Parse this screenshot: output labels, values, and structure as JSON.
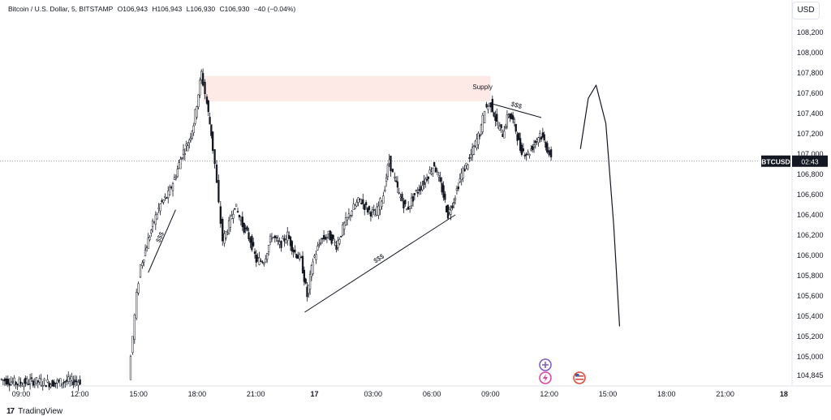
{
  "header": {
    "symbol": "Bitcoin / U.S. Dollar, 5, BITSTAMP",
    "open": "O106,943",
    "high": "H106,943",
    "low": "L106,930",
    "close": "C106,930",
    "change": "−40 (−0.04%)"
  },
  "currency_button": "USD",
  "footer": {
    "logo": "17",
    "brand": "TradingView"
  },
  "chart_data": {
    "type": "candlestick",
    "symbol_badge": "BTCUSD",
    "countdown": "02:43",
    "current_price": 106930,
    "y_ticks": [
      108200,
      108000,
      107800,
      107600,
      107400,
      107200,
      107000,
      106800,
      106600,
      106400,
      106200,
      106000,
      105800,
      105600,
      105400,
      105200,
      105000
    ],
    "y_tick_labels": [
      "108,200",
      "108,000",
      "107,800",
      "107,600",
      "107,400",
      "107,200",
      "107,000",
      "106,800",
      "106,600",
      "106,400",
      "106,200",
      "106,000",
      "105,800",
      "105,600",
      "105,400",
      "105,200",
      "105,000",
      "104,845"
    ],
    "bottom_price": 104845,
    "x_ticks": [
      {
        "t": 9,
        "label": "09:00"
      },
      {
        "t": 12,
        "label": "12:00"
      },
      {
        "t": 15,
        "label": "15:00"
      },
      {
        "t": 18,
        "label": "18:00"
      },
      {
        "t": 21,
        "label": "21:00"
      },
      {
        "t": 24,
        "label": "17",
        "bold": true
      },
      {
        "t": 27,
        "label": "03:00"
      },
      {
        "t": 30,
        "label": "06:00"
      },
      {
        "t": 33,
        "label": "09:00"
      },
      {
        "t": 36,
        "label": "12:00"
      },
      {
        "t": 39,
        "label": "15:00"
      },
      {
        "t": 42,
        "label": "18:00"
      },
      {
        "t": 45,
        "label": "21:00"
      },
      {
        "t": 48,
        "label": "18",
        "bold": true
      }
    ],
    "path_points": [
      [
        8.0,
        104780
      ],
      [
        8.9,
        104740
      ],
      [
        9.7,
        104760
      ],
      [
        10.6,
        104740
      ],
      [
        11.5,
        104760
      ],
      [
        12.1,
        104760
      ],
      [
        14.6,
        104800
      ],
      [
        14.8,
        105200
      ],
      [
        15.0,
        105600
      ],
      [
        15.2,
        105900
      ],
      [
        15.5,
        106100
      ],
      [
        15.8,
        106300
      ],
      [
        16.2,
        106500
      ],
      [
        16.6,
        106600
      ],
      [
        17.0,
        106800
      ],
      [
        17.3,
        107000
      ],
      [
        17.6,
        107100
      ],
      [
        17.9,
        107300
      ],
      [
        18.3,
        107800
      ],
      [
        18.5,
        107600
      ],
      [
        18.8,
        107200
      ],
      [
        19.0,
        106900
      ],
      [
        19.2,
        106500
      ],
      [
        19.4,
        106150
      ],
      [
        19.7,
        106300
      ],
      [
        20.0,
        106500
      ],
      [
        20.4,
        106300
      ],
      [
        20.8,
        106150
      ],
      [
        21.1,
        105950
      ],
      [
        21.5,
        105950
      ],
      [
        21.9,
        106200
      ],
      [
        22.3,
        106100
      ],
      [
        22.7,
        106200
      ],
      [
        23.0,
        106050
      ],
      [
        23.4,
        105950
      ],
      [
        23.7,
        105600
      ],
      [
        24.0,
        105950
      ],
      [
        24.4,
        106150
      ],
      [
        24.8,
        106200
      ],
      [
        25.2,
        106100
      ],
      [
        25.6,
        106300
      ],
      [
        26.0,
        106450
      ],
      [
        26.4,
        106550
      ],
      [
        26.8,
        106450
      ],
      [
        27.2,
        106400
      ],
      [
        27.6,
        106600
      ],
      [
        27.9,
        106950
      ],
      [
        28.1,
        106800
      ],
      [
        28.4,
        106600
      ],
      [
        28.8,
        106450
      ],
      [
        29.2,
        106600
      ],
      [
        29.6,
        106700
      ],
      [
        29.9,
        106800
      ],
      [
        30.2,
        106900
      ],
      [
        30.6,
        106650
      ],
      [
        30.9,
        106400
      ],
      [
        31.2,
        106550
      ],
      [
        31.6,
        106800
      ],
      [
        32.0,
        106950
      ],
      [
        32.3,
        107100
      ],
      [
        32.6,
        107250
      ],
      [
        32.8,
        107450
      ],
      [
        33.1,
        107500
      ],
      [
        33.4,
        107300
      ],
      [
        33.7,
        107200
      ],
      [
        34.0,
        107400
      ],
      [
        34.3,
        107300
      ],
      [
        34.6,
        107050
      ],
      [
        35.0,
        107000
      ],
      [
        35.3,
        107100
      ],
      [
        35.6,
        107200
      ],
      [
        35.9,
        107100
      ],
      [
        36.1,
        107000
      ],
      [
        36.2,
        106930
      ]
    ],
    "supply_zone": {
      "label": "Supply",
      "t0": 18.3,
      "t1": 33.0,
      "p_low": 107520,
      "p_high": 107770
    },
    "liquidity_marks": [
      {
        "label": "$$$",
        "from": [
          15.5,
          105830
        ],
        "to": [
          16.9,
          106450
        ]
      },
      {
        "label": "$$$",
        "from": [
          23.5,
          105440
        ],
        "to": [
          31.2,
          106400
        ]
      },
      {
        "label": "$$$",
        "from": [
          33.0,
          107500
        ],
        "to": [
          35.6,
          107360
        ]
      }
    ],
    "projection": [
      [
        37.6,
        107050
      ],
      [
        38.0,
        107550
      ],
      [
        38.4,
        107680
      ],
      [
        38.9,
        107300
      ],
      [
        39.3,
        106300
      ],
      [
        39.6,
        105300
      ]
    ],
    "event_icons": [
      "plus-circle-icon",
      "lightning-icon",
      "us-flag-icon"
    ]
  }
}
